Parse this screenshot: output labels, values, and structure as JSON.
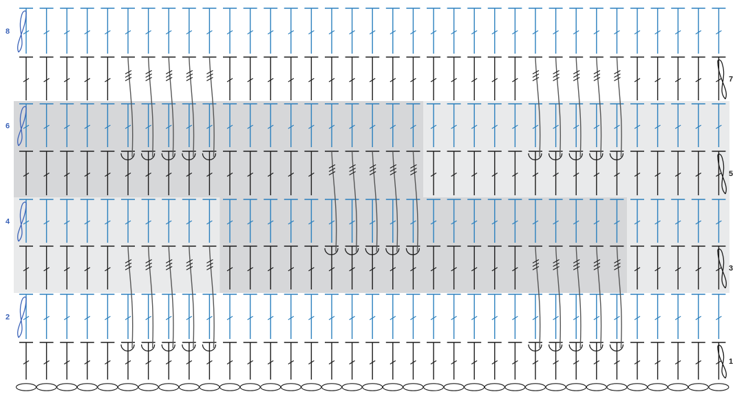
{
  "diagram": {
    "type": "crochet-stitch-chart",
    "stitch_count": 35,
    "foundation_chain_count": 35,
    "colors": {
      "odd_rows": "#1a1a1a",
      "even_rows": "#2a7fbd",
      "loop_even": "#3a62b8",
      "shade_light": "#e9eaeb",
      "shade_dark": "#d6d7d9",
      "post_stitch": "#555555"
    },
    "rows": [
      {
        "label": "1",
        "side": "right",
        "color": "black"
      },
      {
        "label": "2",
        "side": "left",
        "color": "blue"
      },
      {
        "label": "3",
        "side": "right",
        "color": "black"
      },
      {
        "label": "4",
        "side": "left",
        "color": "blue"
      },
      {
        "label": "5",
        "side": "right",
        "color": "black"
      },
      {
        "label": "6",
        "side": "left",
        "color": "blue"
      },
      {
        "label": "7",
        "side": "right",
        "color": "black"
      },
      {
        "label": "8",
        "side": "left",
        "color": "blue"
      }
    ],
    "cable_groups": [
      {
        "row": "3",
        "stitches": [
          6,
          10
        ],
        "anchor_row": "1"
      },
      {
        "row": "3",
        "stitches": [
          26,
          30
        ],
        "anchor_row": "1"
      },
      {
        "row": "5",
        "stitches": [
          16,
          20
        ],
        "anchor_row": "3"
      },
      {
        "row": "7",
        "stitches": [
          6,
          10
        ],
        "anchor_row": "5"
      },
      {
        "row": "7",
        "stitches": [
          26,
          30
        ],
        "anchor_row": "5"
      }
    ],
    "shaded_areas": [
      {
        "tone": "light",
        "rows": [
          "3",
          "4"
        ],
        "stitches": [
          1,
          10
        ]
      },
      {
        "tone": "dark",
        "rows": [
          "3",
          "4"
        ],
        "stitches": [
          11,
          30
        ]
      },
      {
        "tone": "light",
        "rows": [
          "3",
          "4"
        ],
        "stitches": [
          31,
          35
        ]
      },
      {
        "tone": "dark",
        "rows": [
          "5",
          "6"
        ],
        "stitches": [
          1,
          20
        ]
      },
      {
        "tone": "light",
        "rows": [
          "5",
          "6"
        ],
        "stitches": [
          21,
          35
        ]
      }
    ]
  }
}
